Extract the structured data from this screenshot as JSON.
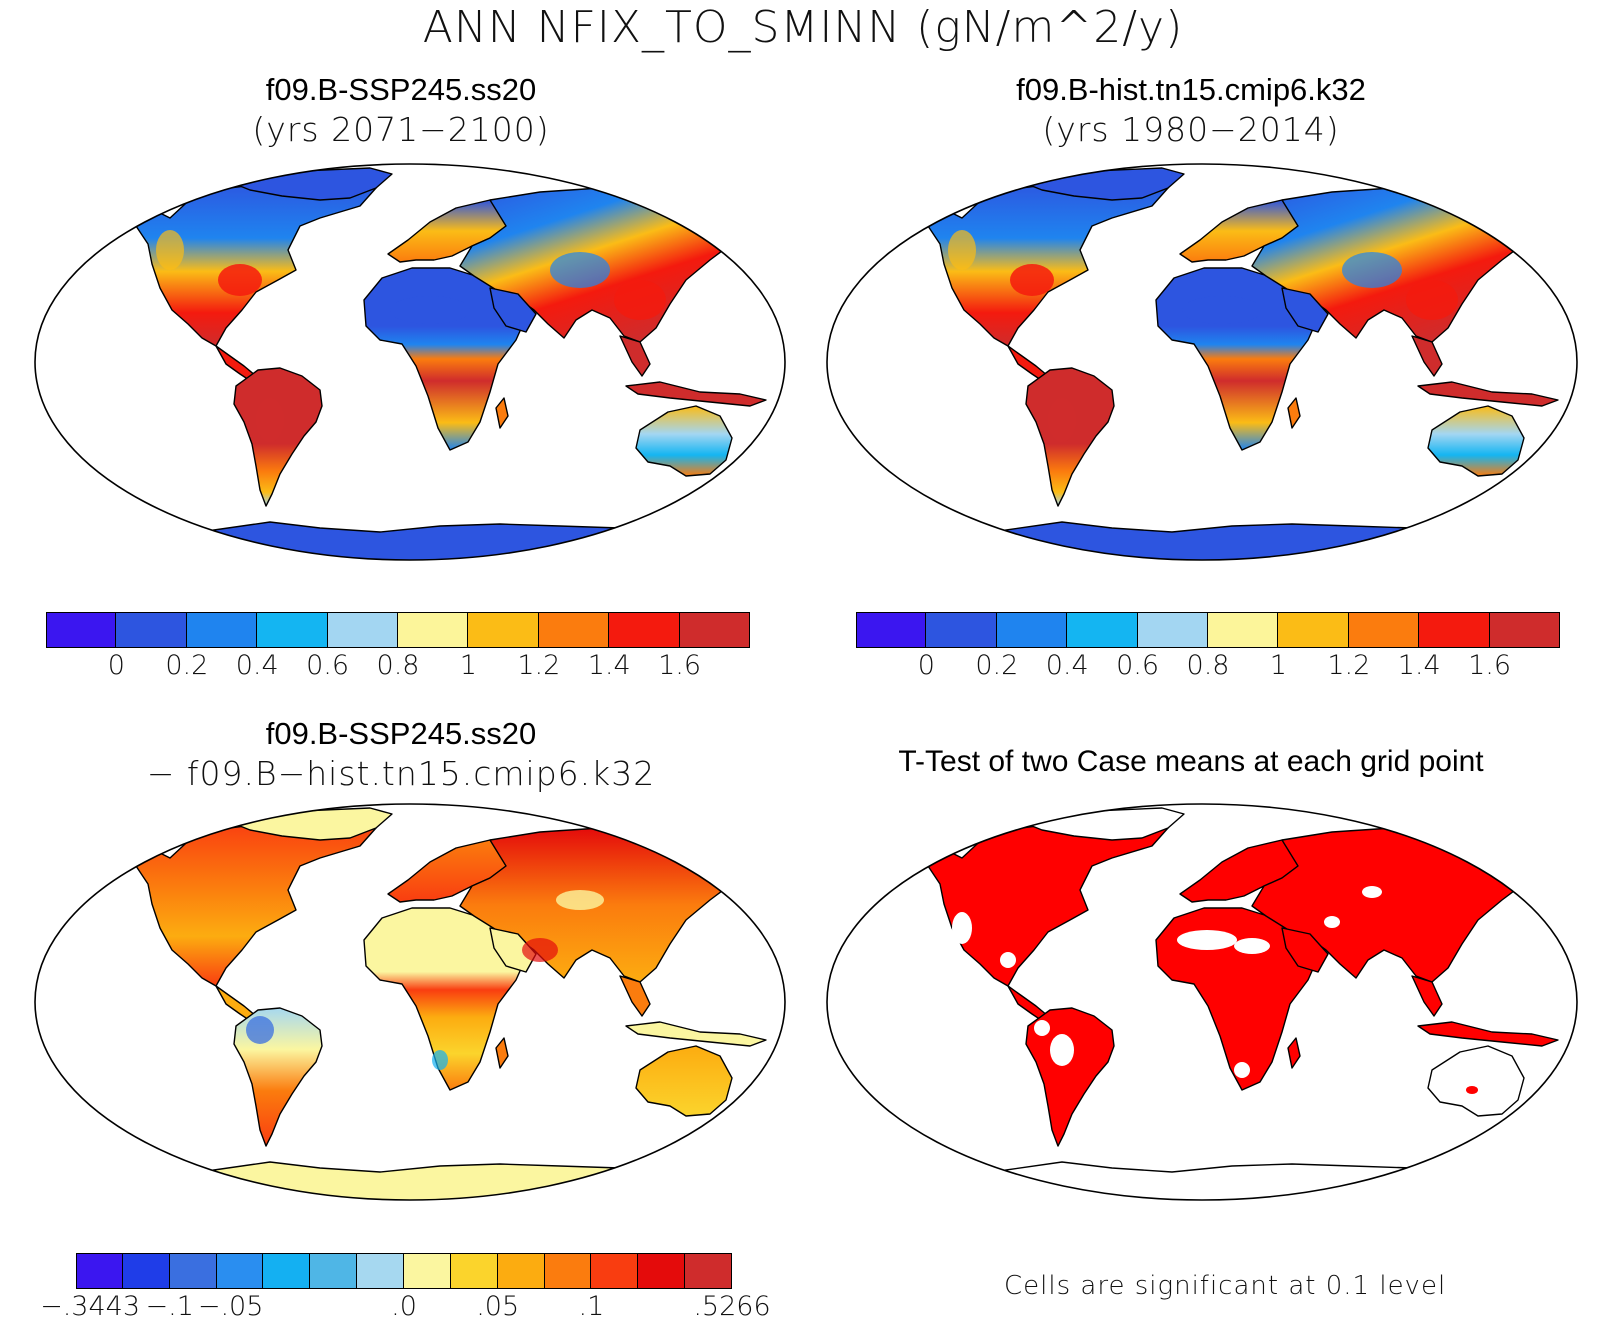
{
  "title": "ANN NFIX_TO_SMINN (gN/m^2/y)",
  "panels": [
    {
      "id": "case1",
      "title": "f09.B-SSP245.ss20",
      "subtitle": "(yrs 2071−2100)",
      "colorbar": {
        "colors": [
          "#3b16f0",
          "#2d55e0",
          "#1f84ef",
          "#14b5f2",
          "#a3d6f2",
          "#fcf59a",
          "#fbbc16",
          "#fb7c0e",
          "#f41a0e",
          "#cf2c2c"
        ],
        "labels": [
          "0",
          "0.2",
          "0.4",
          "0.6",
          "0.8",
          "1",
          "1.2",
          "1.4",
          "1.6"
        ]
      }
    },
    {
      "id": "case2",
      "title": "f09.B-hist.tn15.cmip6.k32",
      "subtitle": "(yrs 1980−2014)",
      "colorbar": {
        "colors": [
          "#3b16f0",
          "#2d55e0",
          "#1f84ef",
          "#14b5f2",
          "#a3d6f2",
          "#fcf59a",
          "#fbbc16",
          "#fb7c0e",
          "#f41a0e",
          "#cf2c2c"
        ],
        "labels": [
          "0",
          "0.2",
          "0.4",
          "0.6",
          "0.8",
          "1",
          "1.2",
          "1.4",
          "1.6"
        ]
      }
    },
    {
      "id": "diff",
      "title": "f09.B-SSP245.ss20",
      "subtitle": "− f09.B−hist.tn15.cmip6.k32",
      "colorbar": {
        "colors": [
          "#3b16f0",
          "#1f3de8",
          "#3a6fe0",
          "#2a8ef0",
          "#14b0f2",
          "#4fb6e6",
          "#a6d8f0",
          "#fbf6a0",
          "#fbd42c",
          "#fcac10",
          "#fb7c0e",
          "#f93d10",
          "#e40b0b",
          "#cf2c2c"
        ],
        "labels": [
          "−.3443",
          "−.1",
          "−.05",
          ".0",
          ".05",
          ".1",
          ".5266"
        ]
      }
    },
    {
      "id": "ttest",
      "title": "T-Test of two Case means at each grid point",
      "note": "Cells are significant at 0.1 level"
    }
  ]
}
